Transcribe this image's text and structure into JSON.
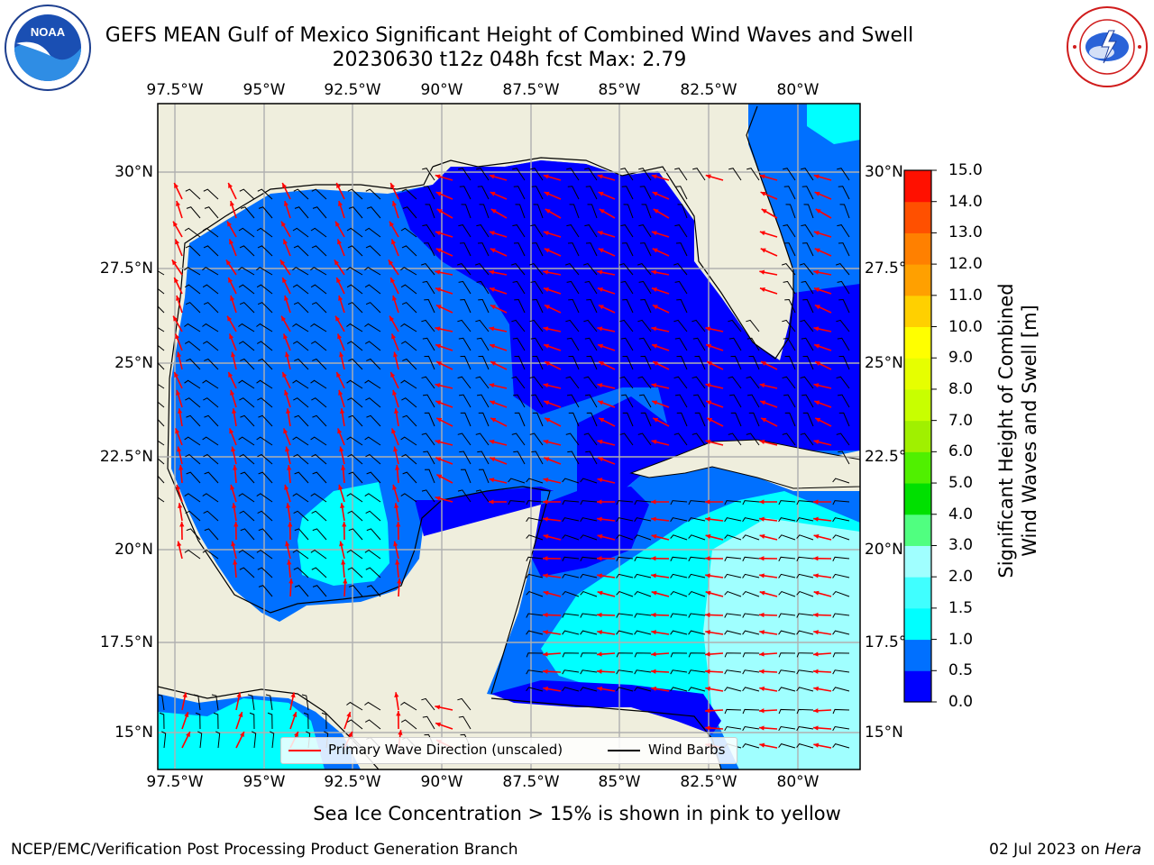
{
  "title": {
    "line1": "GEFS MEAN Gulf of Mexico Significant Height of Combined Wind Waves and Swell",
    "line2": "20230630 t12z 048h fcst   Max: 2.79"
  },
  "logos": {
    "left": {
      "name": "noaa-logo",
      "text": "NOAA",
      "ring_text": "NATIONAL OCEANIC AND ATMOSPHERIC ADMINISTRATION · U.S. DEPARTMENT OF COMMERCE"
    },
    "right": {
      "name": "nws-logo",
      "ring_text": "NATIONAL WEATHER SERVICE"
    }
  },
  "map": {
    "lon_labels": [
      "97.5°W",
      "95°W",
      "92.5°W",
      "90°W",
      "87.5°W",
      "85°W",
      "82.5°W",
      "80°W"
    ],
    "lat_labels_left": [
      "30°N",
      "27.5°N",
      "25°N",
      "22.5°N",
      "20°N",
      "17.5°N",
      "15°N"
    ],
    "lat_labels_right": [
      "30°N",
      "27.5°N",
      "25°N",
      "22.5°N",
      "20°N",
      "17.5°N",
      "15°N"
    ],
    "colors": {
      "land": "#efeedd",
      "grid": "#b0b0b0",
      "wave_arrow": "#ff0000",
      "barb": "#000000"
    }
  },
  "colorbar": {
    "title_line1": "Significant Height of Combined",
    "title_line2": "Wind Waves and Swell [m]",
    "ticks": [
      "15.0",
      "14.0",
      "13.0",
      "12.0",
      "11.0",
      "10.0",
      "9.0",
      "8.0",
      "7.0",
      "6.0",
      "5.0",
      "4.0",
      "3.0",
      "2.0",
      "1.5",
      "1.0",
      "0.5",
      "0.0"
    ],
    "colors_bottom_to_top": [
      "#0000ff",
      "#0070ff",
      "#00ffff",
      "#40ffff",
      "#a0ffff",
      "#50ff80",
      "#00e000",
      "#50f000",
      "#a0f000",
      "#c8ff00",
      "#e6ff00",
      "#ffff00",
      "#ffd000",
      "#ffa000",
      "#ff8000",
      "#ff5000",
      "#ff1000"
    ]
  },
  "legend": {
    "wave": "Primary Wave Direction (unscaled)",
    "barb": "Wind Barbs"
  },
  "ice_note": "Sea Ice Concentration > 15% is shown in pink to yellow",
  "footer": {
    "left": "NCEP/EMC/Verification Post Processing Product Generation Branch",
    "right_date": "02 Jul 2023 on ",
    "right_host": "Hera"
  }
}
